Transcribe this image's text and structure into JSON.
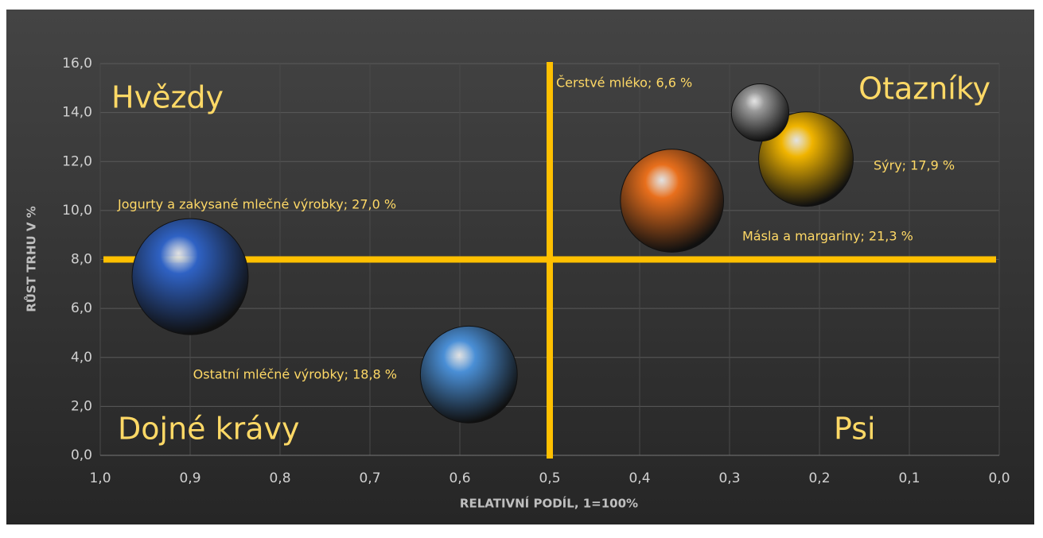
{
  "chart_data": {
    "type": "bubble",
    "x_label": "RELATIVNÍ PODÍL, 1=100%",
    "y_label": "RŮST TRHU V %",
    "xlim": [
      1.0,
      0.0
    ],
    "xticks": [
      {
        "value": 1.0,
        "label": "1,0"
      },
      {
        "value": 0.9,
        "label": "0,9"
      },
      {
        "value": 0.8,
        "label": "0,8"
      },
      {
        "value": 0.7,
        "label": "0,7"
      },
      {
        "value": 0.6,
        "label": "0,6"
      },
      {
        "value": 0.5,
        "label": "0,5"
      },
      {
        "value": 0.4,
        "label": "0,4"
      },
      {
        "value": 0.3,
        "label": "0,3"
      },
      {
        "value": 0.2,
        "label": "0,2"
      },
      {
        "value": 0.1,
        "label": "0,1"
      },
      {
        "value": 0.0,
        "label": "0,0"
      }
    ],
    "ylim": [
      0,
      16
    ],
    "yticks": [
      {
        "value": 0,
        "label": "0,0"
      },
      {
        "value": 2,
        "label": "2,0"
      },
      {
        "value": 4,
        "label": "4,0"
      },
      {
        "value": 6,
        "label": "6,0"
      },
      {
        "value": 8,
        "label": "8,0"
      },
      {
        "value": 10,
        "label": "10,0"
      },
      {
        "value": 12,
        "label": "12,0"
      },
      {
        "value": 14,
        "label": "14,0"
      },
      {
        "value": 16,
        "label": "16,0"
      }
    ],
    "grid": true,
    "points": [
      {
        "x": 0.9,
        "y": 7.3,
        "size": 27.0,
        "color": "#2f62c4",
        "value_label": "Jogurty a zakysané mlečné výrobky; 27,0 %"
      },
      {
        "x": 0.59,
        "y": 3.3,
        "size": 18.8,
        "color": "#4a8fd6",
        "value_label": "Ostatní mléčné výrobky; 18,8 %"
      },
      {
        "x": 0.364,
        "y": 10.4,
        "size": 21.3,
        "color": "#e86f1c",
        "value_label": "Másla a margariny; 21,3 %"
      },
      {
        "x": 0.215,
        "y": 12.1,
        "size": 17.9,
        "color": "#f0b400",
        "value_label": "Sýry; 17,9 %"
      },
      {
        "x": 0.266,
        "y": 14.0,
        "size": 6.6,
        "color": "#9a9a9a",
        "value_label": "Čerstvé mléko; 6,6 %"
      }
    ],
    "reference_lines": {
      "x": 0.5,
      "y": 8,
      "color": "#ffc000"
    },
    "annotations": [
      "Hvězdy",
      "Otazníky",
      "Dojné krávy",
      "Psi"
    ]
  }
}
